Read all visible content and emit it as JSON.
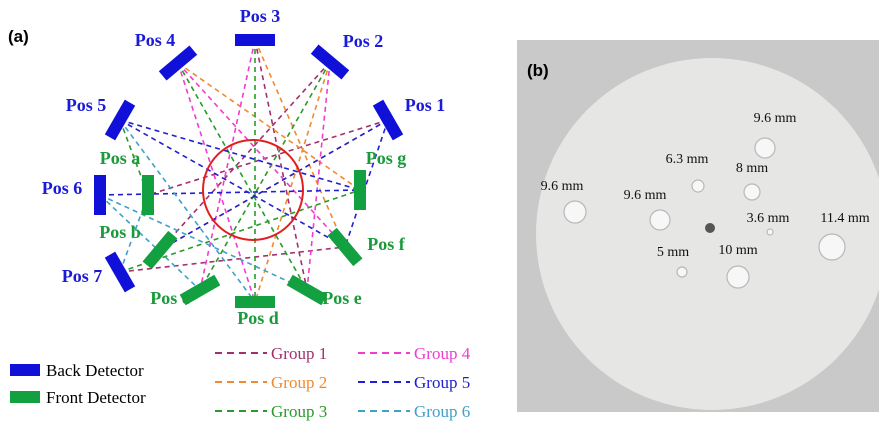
{
  "panel_a": {
    "label": "(a)",
    "back_positions": [
      "Pos 1",
      "Pos 2",
      "Pos 3",
      "Pos 4",
      "Pos 5",
      "Pos 6",
      "Pos 7"
    ],
    "front_positions": [
      "Pos a",
      "Pos b",
      "Pos c",
      "Pos d",
      "Pos e",
      "Pos f",
      "Pos g"
    ],
    "legend": {
      "detectors": [
        "Back Detector",
        "Front Detector"
      ],
      "groups": [
        "Group 1",
        "Group 2",
        "Group 3",
        "Group 4",
        "Group 5",
        "Group 6"
      ]
    }
  },
  "panel_b": {
    "label": "(b)",
    "hole_sizes": [
      "9.6 mm",
      "6.3 mm",
      "8 mm",
      "9.6 mm",
      "9.6 mm",
      "3.6 mm",
      "11.4 mm",
      "5 mm",
      "10 mm"
    ]
  }
}
